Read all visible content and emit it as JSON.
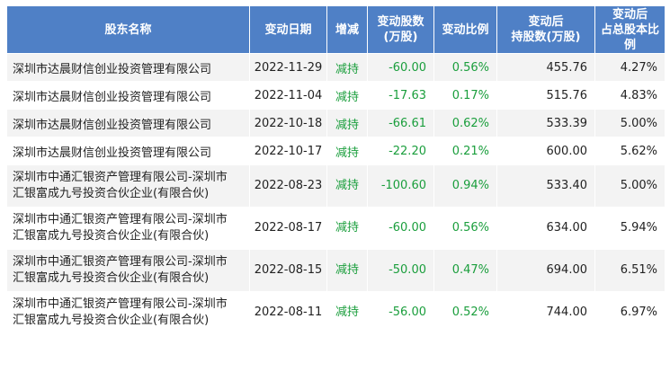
{
  "headers": {
    "name": "股东名称",
    "date": "变动日期",
    "type": "增减",
    "shares_l1": "变动股数",
    "shares_l2": "(万股)",
    "ratio": "变动比例",
    "hold_l1": "变动后",
    "hold_l2": "持股数(万股)",
    "pct_l1": "变动后",
    "pct_l2": "占总股本比例"
  },
  "rows": [
    {
      "name1": "深圳市达晨财信创业投资管理有限公司",
      "name2": "",
      "date": "2022-11-29",
      "type": "减持",
      "shares": "-60.00",
      "ratio": "0.56%",
      "hold": "455.76",
      "pct": "4.27%"
    },
    {
      "name1": "深圳市达晨财信创业投资管理有限公司",
      "name2": "",
      "date": "2022-11-04",
      "type": "减持",
      "shares": "-17.63",
      "ratio": "0.17%",
      "hold": "515.76",
      "pct": "4.83%"
    },
    {
      "name1": "深圳市达晨财信创业投资管理有限公司",
      "name2": "",
      "date": "2022-10-18",
      "type": "减持",
      "shares": "-66.61",
      "ratio": "0.62%",
      "hold": "533.39",
      "pct": "5.00%"
    },
    {
      "name1": "深圳市达晨财信创业投资管理有限公司",
      "name2": "",
      "date": "2022-10-17",
      "type": "减持",
      "shares": "-22.20",
      "ratio": "0.21%",
      "hold": "600.00",
      "pct": "5.62%"
    },
    {
      "name1": "深圳市中通汇银资产管理有限公司-深圳市",
      "name2": "汇银富成九号投资合伙企业(有限合伙)",
      "date": "2022-08-23",
      "type": "减持",
      "shares": "-100.60",
      "ratio": "0.94%",
      "hold": "533.40",
      "pct": "5.00%"
    },
    {
      "name1": "深圳市中通汇银资产管理有限公司-深圳市",
      "name2": "汇银富成九号投资合伙企业(有限合伙)",
      "date": "2022-08-17",
      "type": "减持",
      "shares": "-60.00",
      "ratio": "0.56%",
      "hold": "634.00",
      "pct": "5.94%"
    },
    {
      "name1": "深圳市中通汇银资产管理有限公司-深圳市",
      "name2": "汇银富成九号投资合伙企业(有限合伙)",
      "date": "2022-08-15",
      "type": "减持",
      "shares": "-50.00",
      "ratio": "0.47%",
      "hold": "694.00",
      "pct": "6.51%"
    },
    {
      "name1": "深圳市中通汇银资产管理有限公司-深圳市",
      "name2": "汇银富成九号投资合伙企业(有限合伙)",
      "date": "2022-08-11",
      "type": "减持",
      "shares": "-56.00",
      "ratio": "0.52%",
      "hold": "744.00",
      "pct": "6.97%"
    }
  ],
  "colors": {
    "header_bg": "#4f80c6",
    "decrease": "#1a9e3c",
    "stripe": "#f3f3f3"
  }
}
